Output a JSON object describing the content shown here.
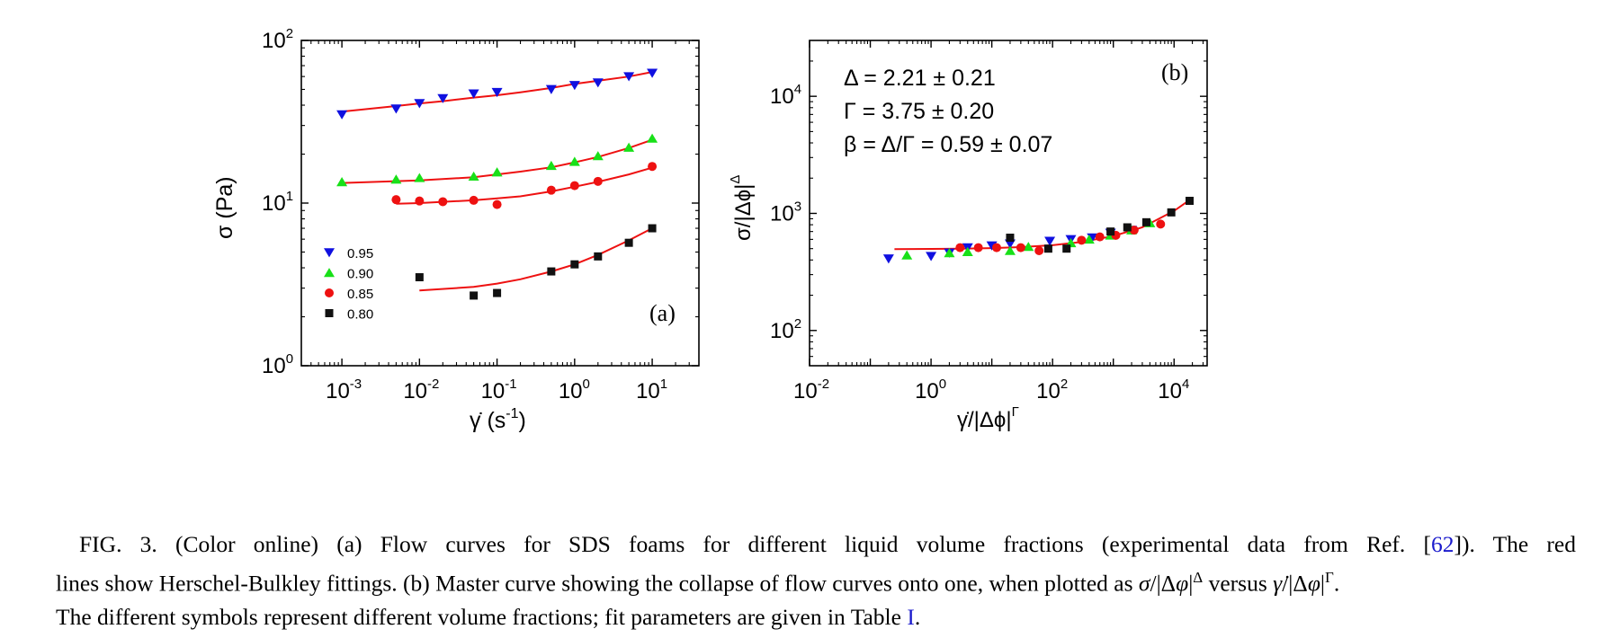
{
  "chart_data": [
    {
      "type": "scatter",
      "panel_label": "(a)",
      "xlabel": "γ̇ (s⁻¹)",
      "ylabel": "σ (Pa)",
      "xscale": "log",
      "yscale": "log",
      "xlim": [
        0.0003,
        40
      ],
      "ylim": [
        1,
        100
      ],
      "xticks": [
        "10⁻³",
        "10⁻²",
        "10⁻¹",
        "10⁰",
        "10¹"
      ],
      "yticks": [
        "10⁰",
        "10¹",
        "10²"
      ],
      "legend_position": "lower-left",
      "series": [
        {
          "name": "0.95",
          "marker": "triangle-down",
          "color": "#1010e0",
          "x": [
            0.001,
            0.005,
            0.01,
            0.02,
            0.05,
            0.1,
            0.5,
            1,
            2,
            5,
            10
          ],
          "y": [
            35,
            38,
            41,
            44,
            47,
            48,
            50,
            53,
            55,
            60,
            63
          ]
        },
        {
          "name": "0.90",
          "marker": "triangle-up",
          "color": "#18e018",
          "x": [
            0.001,
            0.005,
            0.01,
            0.05,
            0.1,
            0.5,
            1,
            2,
            5,
            10
          ],
          "y": [
            13.5,
            14,
            14.3,
            14.6,
            15.5,
            17,
            18,
            19.5,
            22,
            25
          ]
        },
        {
          "name": "0.85",
          "marker": "circle",
          "color": "#ee1111",
          "x": [
            0.005,
            0.01,
            0.02,
            0.05,
            0.1,
            0.5,
            1,
            2,
            10
          ],
          "y": [
            10.5,
            10.3,
            10.2,
            10.4,
            9.8,
            12,
            12.8,
            13.6,
            16.8
          ]
        },
        {
          "name": "0.80",
          "marker": "square",
          "color": "#111111",
          "x": [
            0.01,
            0.05,
            0.1,
            0.5,
            1,
            2,
            5,
            10
          ],
          "y": [
            3.5,
            2.7,
            2.8,
            3.8,
            4.2,
            4.7,
            5.7,
            7
          ]
        }
      ],
      "fits": [
        {
          "x": [
            0.001,
            0.005,
            0.01,
            0.02,
            0.05,
            0.1,
            0.2,
            0.5,
            1,
            2,
            5,
            10
          ],
          "y": [
            36.5,
            39.5,
            41,
            42.3,
            44.5,
            46,
            48,
            51,
            54,
            56.5,
            60,
            64
          ]
        },
        {
          "x": [
            0.001,
            0.01,
            0.05,
            0.1,
            0.2,
            0.5,
            1,
            2,
            5,
            10
          ],
          "y": [
            13.3,
            13.8,
            14.4,
            15,
            15.6,
            16.6,
            17.8,
            19.2,
            21.8,
            24.5
          ]
        },
        {
          "x": [
            0.005,
            0.01,
            0.05,
            0.1,
            0.2,
            0.5,
            1,
            2,
            5,
            10
          ],
          "y": [
            9.9,
            10.0,
            10.4,
            10.7,
            11.0,
            11.8,
            12.6,
            13.5,
            15,
            16.5
          ]
        },
        {
          "x": [
            0.01,
            0.05,
            0.1,
            0.2,
            0.5,
            1,
            2,
            5,
            10
          ],
          "y": [
            2.9,
            3.05,
            3.2,
            3.4,
            3.8,
            4.2,
            4.8,
            5.9,
            7.0
          ]
        }
      ]
    },
    {
      "type": "scatter",
      "panel_label": "(b)",
      "xlabel": "γ̇/|Δϕ|^Γ",
      "ylabel": "σ/|Δϕ|^Δ",
      "xscale": "log",
      "yscale": "log",
      "xlim": [
        0.01,
        35000
      ],
      "ylim": [
        50,
        30000
      ],
      "xticks": [
        "10⁻²",
        "10⁰",
        "10²",
        "10⁴"
      ],
      "yticks": [
        "10²",
        "10³",
        "10⁴"
      ],
      "annotations": [
        "Δ = 2.21 ± 0.21",
        "Γ = 3.75 ± 0.20",
        "β = Δ/Γ = 0.59 ± 0.07"
      ],
      "series": [
        {
          "name": "0.95",
          "marker": "triangle-down",
          "color": "#1010e0",
          "x": [
            0.2,
            1,
            2,
            4,
            10,
            20,
            90,
            200,
            450,
            900,
            2000
          ],
          "y": [
            410,
            430,
            460,
            510,
            530,
            550,
            580,
            600,
            620,
            680,
            720
          ]
        },
        {
          "name": "0.90",
          "marker": "triangle-up",
          "color": "#18e018",
          "x": [
            0.4,
            2,
            4,
            20,
            40,
            200,
            400,
            900,
            2000,
            4000
          ],
          "y": [
            440,
            460,
            470,
            480,
            520,
            560,
            600,
            650,
            720,
            830
          ]
        },
        {
          "name": "0.85",
          "marker": "circle",
          "color": "#ee1111",
          "x": [
            3,
            6,
            12,
            30,
            60,
            300,
            600,
            1100,
            2200,
            6000
          ],
          "y": [
            510,
            510,
            510,
            510,
            480,
            590,
            630,
            650,
            720,
            810
          ]
        },
        {
          "name": "0.80",
          "marker": "square",
          "color": "#111111",
          "x": [
            20,
            85,
            170,
            900,
            1700,
            3500,
            9000,
            18000
          ],
          "y": [
            620,
            500,
            500,
            700,
            760,
            840,
            1020,
            1280
          ]
        }
      ],
      "fit": {
        "x": [
          0.25,
          1,
          3,
          10,
          30,
          100,
          300,
          1000,
          3000,
          10000,
          18000
        ],
        "y": [
          495,
          497,
          500,
          505,
          515,
          535,
          570,
          640,
          760,
          1050,
          1300
        ]
      }
    }
  ],
  "caption": {
    "line1": "FIG. 3. (Color online)  (a) Flow curves for SDS foams for different liquid volume fractions (experimental data from Ref. [",
    "ref1": "62",
    "line1_end": "]). The red",
    "line2a": "lines show Herschel-Bulkley fittings. (b) Master curve showing the collapse of flow curves onto one, when plotted as ",
    "line2_sigma": "σ",
    "line2_mid1": "/|Δ",
    "line2_phi1": "φ",
    "line2_mid2": "|",
    "line2_sup1": "Δ",
    "line2_versus": " versus ",
    "line2_gamma": "γ̇",
    "line2_mid3": "/|Δ",
    "line2_phi2": "φ",
    "line2_mid4": "|",
    "line2_sup2": "Γ",
    "line2_end": ".",
    "line3a": "The different symbols represent different volume fractions; fit parameters are given in Table ",
    "ref2": "I",
    "line3_end": "."
  }
}
